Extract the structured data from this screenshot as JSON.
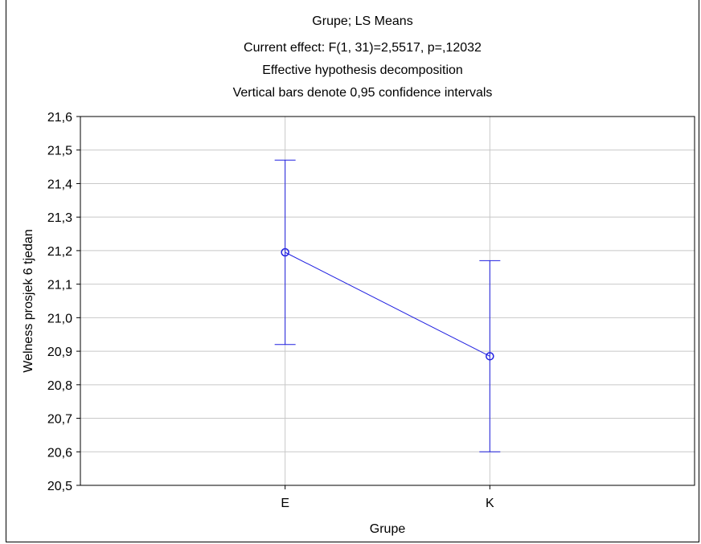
{
  "chart_data": {
    "type": "line",
    "title_lines": [
      "Grupe; LS Means",
      "Current effect: F(1, 31)=2,5517, p=,12032",
      "Effective hypothesis decomposition",
      "Vertical bars denote 0,95 confidence intervals"
    ],
    "xlabel": "Grupe",
    "ylabel": "Welness prosjek 6 tjedan",
    "categories": [
      "E",
      "K"
    ],
    "series": [
      {
        "values": [
          21.195,
          20.885
        ],
        "ci_lower": [
          20.92,
          20.6
        ],
        "ci_upper": [
          21.47,
          21.17
        ]
      }
    ],
    "ylim": [
      20.5,
      21.6
    ],
    "yticks": [
      20.5,
      20.6,
      20.7,
      20.8,
      20.9,
      21.0,
      21.1,
      21.2,
      21.3,
      21.4,
      21.5,
      21.6
    ],
    "ytick_labels": [
      "20,5",
      "20,6",
      "20,7",
      "20,8",
      "20,9",
      "21,0",
      "21,1",
      "21,2",
      "21,3",
      "21,4",
      "21,5",
      "21,6"
    ],
    "grid": true,
    "series_color": "#2020e0",
    "grid_color": "#c8c8c8"
  }
}
